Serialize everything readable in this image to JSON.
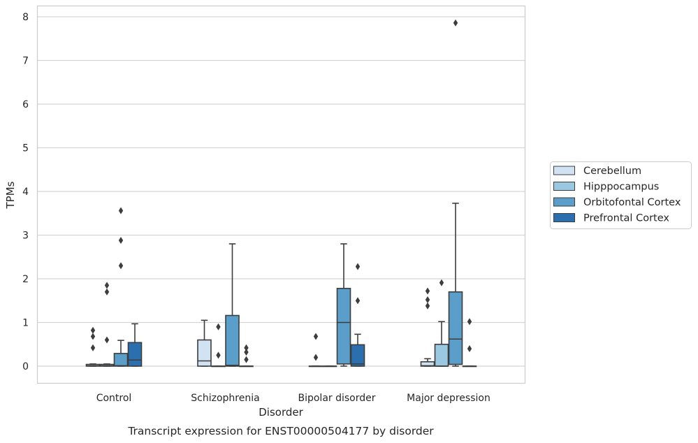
{
  "chart_data": {
    "type": "box",
    "caption": "Transcript expression for ENST00000504177 by disorder",
    "xlabel": "Disorder",
    "ylabel": "TPMs",
    "ylim": [
      -0.38,
      8.25
    ],
    "yticks": [
      0,
      1,
      2,
      3,
      4,
      5,
      6,
      7,
      8
    ],
    "grid": true,
    "legend_position": "right",
    "categories": [
      "Control",
      "Schizophrenia",
      "Bipolar disorder",
      "Major depression"
    ],
    "series": [
      {
        "name": "Cerebellum",
        "color": "#d1e2f2",
        "boxes": [
          {
            "q1": 0,
            "median": 0.01,
            "q3": 0.04,
            "whisker_low": 0,
            "whisker_high": 0.05,
            "outliers": [
              0.42,
              0.68,
              0.82
            ]
          },
          {
            "q1": 0,
            "median": 0.12,
            "q3": 0.6,
            "whisker_low": 0,
            "whisker_high": 1.05,
            "outliers": []
          },
          {
            "q1": 0,
            "median": 0,
            "q3": 0,
            "whisker_low": 0,
            "whisker_high": 0,
            "outliers": [
              0.2,
              0.68
            ]
          },
          {
            "q1": 0,
            "median": 0.01,
            "q3": 0.1,
            "whisker_low": 0,
            "whisker_high": 0.17,
            "outliers": [
              1.38,
              1.52,
              1.72
            ]
          }
        ]
      },
      {
        "name": "Hipppocampus",
        "color": "#9ac8e0",
        "boxes": [
          {
            "q1": 0,
            "median": 0.01,
            "q3": 0.04,
            "whisker_low": 0,
            "whisker_high": 0.05,
            "outliers": [
              0.6,
              1.7,
              1.85
            ]
          },
          {
            "q1": 0,
            "median": 0,
            "q3": 0,
            "whisker_low": 0,
            "whisker_high": 0,
            "outliers": [
              0.25,
              0.9
            ]
          },
          {
            "q1": 0,
            "median": 0,
            "q3": 0,
            "whisker_low": 0,
            "whisker_high": 0,
            "outliers": []
          },
          {
            "q1": 0,
            "median": 0,
            "q3": 0.5,
            "whisker_low": 0,
            "whisker_high": 1.02,
            "outliers": [
              1.91
            ]
          }
        ]
      },
      {
        "name": "Orbitofontal Cortex",
        "color": "#5a9ec9",
        "boxes": [
          {
            "q1": 0,
            "median": 0.01,
            "q3": 0.29,
            "whisker_low": 0,
            "whisker_high": 0.59,
            "outliers": [
              2.3,
              2.88,
              3.56
            ]
          },
          {
            "q1": 0,
            "median": 0.02,
            "q3": 1.16,
            "whisker_low": 0,
            "whisker_high": 2.8,
            "outliers": []
          },
          {
            "q1": 0.05,
            "median": 1.0,
            "q3": 1.78,
            "whisker_low": 0,
            "whisker_high": 2.8,
            "outliers": []
          },
          {
            "q1": 0.04,
            "median": 0.62,
            "q3": 1.7,
            "whisker_low": 0,
            "whisker_high": 3.73,
            "outliers": [
              7.86
            ]
          }
        ]
      },
      {
        "name": "Prefrontal Cortex",
        "color": "#2c6fae",
        "boxes": [
          {
            "q1": 0,
            "median": 0.14,
            "q3": 0.54,
            "whisker_low": 0,
            "whisker_high": 0.97,
            "outliers": []
          },
          {
            "q1": 0,
            "median": 0,
            "q3": 0,
            "whisker_low": 0,
            "whisker_high": 0,
            "outliers": [
              0.15,
              0.32,
              0.42
            ]
          },
          {
            "q1": 0,
            "median": 0.05,
            "q3": 0.49,
            "whisker_low": 0,
            "whisker_high": 0.73,
            "outliers": [
              1.5,
              2.28
            ]
          },
          {
            "q1": 0,
            "median": 0,
            "q3": 0,
            "whisker_low": 0,
            "whisker_high": 0,
            "outliers": [
              0.4,
              1.02
            ]
          }
        ]
      }
    ]
  }
}
